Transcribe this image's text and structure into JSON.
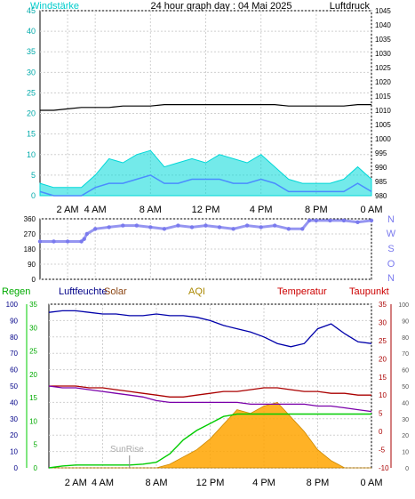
{
  "header": {
    "left_label": "Windstärke",
    "title": "24 hour graph day : 04 Mai 2025",
    "right_label": "Luftdruck"
  },
  "x_ticks": [
    "2 AM",
    "4 AM",
    "8 AM",
    "12 PM",
    "4 PM",
    "8 PM",
    "0 AM"
  ],
  "direction_labels": [
    "N",
    "W",
    "S",
    "O",
    "N"
  ],
  "legend": {
    "regen": "Regen",
    "luftfeuchte": "Luftfeuchte",
    "solar": "Solar",
    "aqi": "AQI",
    "temperatur": "Temperatur",
    "taupunkt": "Taupunkt",
    "sunrise": "SunRise"
  },
  "colors": {
    "wind_gust": "#00d8d8",
    "wind_avg": "#4a8cff",
    "pressure": "#000000",
    "direction": "#7a7aee",
    "humidity": "#0000aa",
    "temperature": "#aa0000",
    "dewpoint": "#7a00aa",
    "rain": "#00cc00",
    "solar": "#ffa500",
    "regen_label": "#00aa00",
    "luftfeuchte_label": "#000088",
    "solar_label": "#8b4513",
    "aqi_label": "#aa8800",
    "temperatur_label": "#cc0000",
    "taupunkt_label": "#cc0000",
    "axis_cyan": "#00aaaa"
  },
  "chart_data": [
    {
      "type": "line",
      "name": "wind_pressure",
      "x_hours": [
        0,
        1,
        2,
        3,
        4,
        5,
        6,
        7,
        8,
        9,
        10,
        11,
        12,
        13,
        14,
        15,
        16,
        17,
        18,
        19,
        20,
        21,
        22,
        23,
        24
      ],
      "series": [
        {
          "values": [
            3,
            2,
            2,
            2,
            5,
            9,
            8,
            10,
            11,
            7,
            8,
            9,
            8,
            10,
            9,
            8,
            10,
            7,
            4,
            3,
            3,
            3,
            4,
            7,
            4
          ]
        },
        {
          "values": [
            1,
            0,
            0,
            0,
            2,
            3,
            3,
            4,
            5,
            3,
            3,
            4,
            4,
            4,
            3,
            3,
            4,
            3,
            1,
            1,
            1,
            1,
            1,
            3,
            1
          ]
        },
        {
          "values": [
            1010,
            1010,
            1010.5,
            1011,
            1011,
            1011,
            1011.5,
            1011.5,
            1011.5,
            1012,
            1012,
            1012,
            1012,
            1012,
            1012,
            1012,
            1012,
            1012,
            1011.5,
            1011.5,
            1011.5,
            1011.5,
            1011.5,
            1012,
            1012
          ]
        }
      ],
      "y_left_range": [
        0,
        45
      ],
      "y_left_ticks": [
        0,
        5,
        10,
        15,
        20,
        25,
        30,
        35,
        40,
        45
      ],
      "y_right_range": [
        980,
        1045
      ],
      "y_right_ticks": [
        980,
        985,
        990,
        995,
        1000,
        1005,
        1010,
        1015,
        1020,
        1025,
        1030,
        1035,
        1040,
        1045
      ],
      "grid": true
    },
    {
      "type": "scatter",
      "name": "wind_direction",
      "x_hours": [
        0,
        1,
        2,
        3,
        3.2,
        3.4,
        4,
        5,
        6,
        7,
        8,
        9,
        10,
        11,
        12,
        13,
        14,
        15,
        16,
        17,
        18,
        19,
        19.5,
        20,
        21,
        22,
        23,
        24
      ],
      "values": [
        225,
        225,
        225,
        225,
        240,
        270,
        300,
        310,
        320,
        320,
        310,
        300,
        320,
        310,
        320,
        310,
        300,
        320,
        310,
        320,
        300,
        300,
        350,
        350,
        350,
        350,
        340,
        350
      ],
      "y_range": [
        0,
        360
      ],
      "y_ticks": [
        0,
        90,
        180,
        270,
        360
      ],
      "grid": true
    },
    {
      "type": "line",
      "name": "weather",
      "x_hours": [
        0,
        1,
        2,
        3,
        4,
        5,
        6,
        7,
        8,
        9,
        10,
        11,
        12,
        13,
        14,
        15,
        16,
        17,
        18,
        19,
        20,
        21,
        22,
        23,
        24
      ],
      "series": [
        {
          "values": [
            95,
            96,
            96,
            95,
            94,
            94,
            93,
            93,
            94,
            93,
            93,
            92,
            90,
            87,
            85,
            83,
            80,
            76,
            74,
            76,
            85,
            88,
            82,
            77,
            76
          ]
        },
        {
          "values": [
            12.5,
            12.5,
            12.5,
            12,
            12,
            11.5,
            11,
            10.5,
            10,
            9.5,
            9.5,
            10,
            10.5,
            11,
            11,
            11.5,
            12,
            12,
            11.5,
            11,
            11,
            10.5,
            10.5,
            10,
            10
          ]
        },
        {
          "values": [
            12.5,
            12,
            12,
            11.5,
            11,
            10.5,
            10,
            9.5,
            8.5,
            8,
            8,
            8,
            8,
            8,
            8,
            7.5,
            7.5,
            7.5,
            7.5,
            7.5,
            7,
            7,
            6.5,
            6,
            5.5
          ]
        },
        {
          "values": [
            0,
            0.4,
            0.6,
            0.6,
            0.6,
            0.6,
            0.6,
            0.8,
            1.2,
            3,
            6,
            8,
            9.5,
            11,
            11.5,
            11.5,
            11.5,
            11.5,
            11.5,
            11.5,
            11.5,
            11.5,
            11.5,
            11.5,
            11.5
          ]
        },
        {
          "values": [
            0,
            0,
            0,
            0,
            0,
            0,
            0,
            0,
            0,
            1,
            3,
            5,
            8,
            12,
            16,
            15,
            17,
            18,
            14,
            10,
            5,
            2,
            0,
            0,
            0
          ]
        }
      ],
      "y_regen_range": [
        0,
        35
      ],
      "y_regen_ticks": [
        0,
        5,
        10,
        15,
        20,
        25,
        30,
        35
      ],
      "y_humidity_range": [
        0,
        100
      ],
      "y_humidity_ticks": [
        0,
        10,
        20,
        30,
        40,
        50,
        60,
        70,
        80,
        90,
        100
      ],
      "y_temp_range": [
        -10,
        35
      ],
      "y_temp_ticks": [
        -10,
        -5,
        0,
        5,
        10,
        15,
        20,
        25,
        30,
        35
      ],
      "y_outer_range": [
        0,
        100
      ],
      "y_outer_ticks": [
        0,
        10,
        20,
        30,
        40,
        50,
        60,
        70,
        80,
        90,
        100
      ],
      "sunrise_hour": 6,
      "grid": true
    }
  ]
}
